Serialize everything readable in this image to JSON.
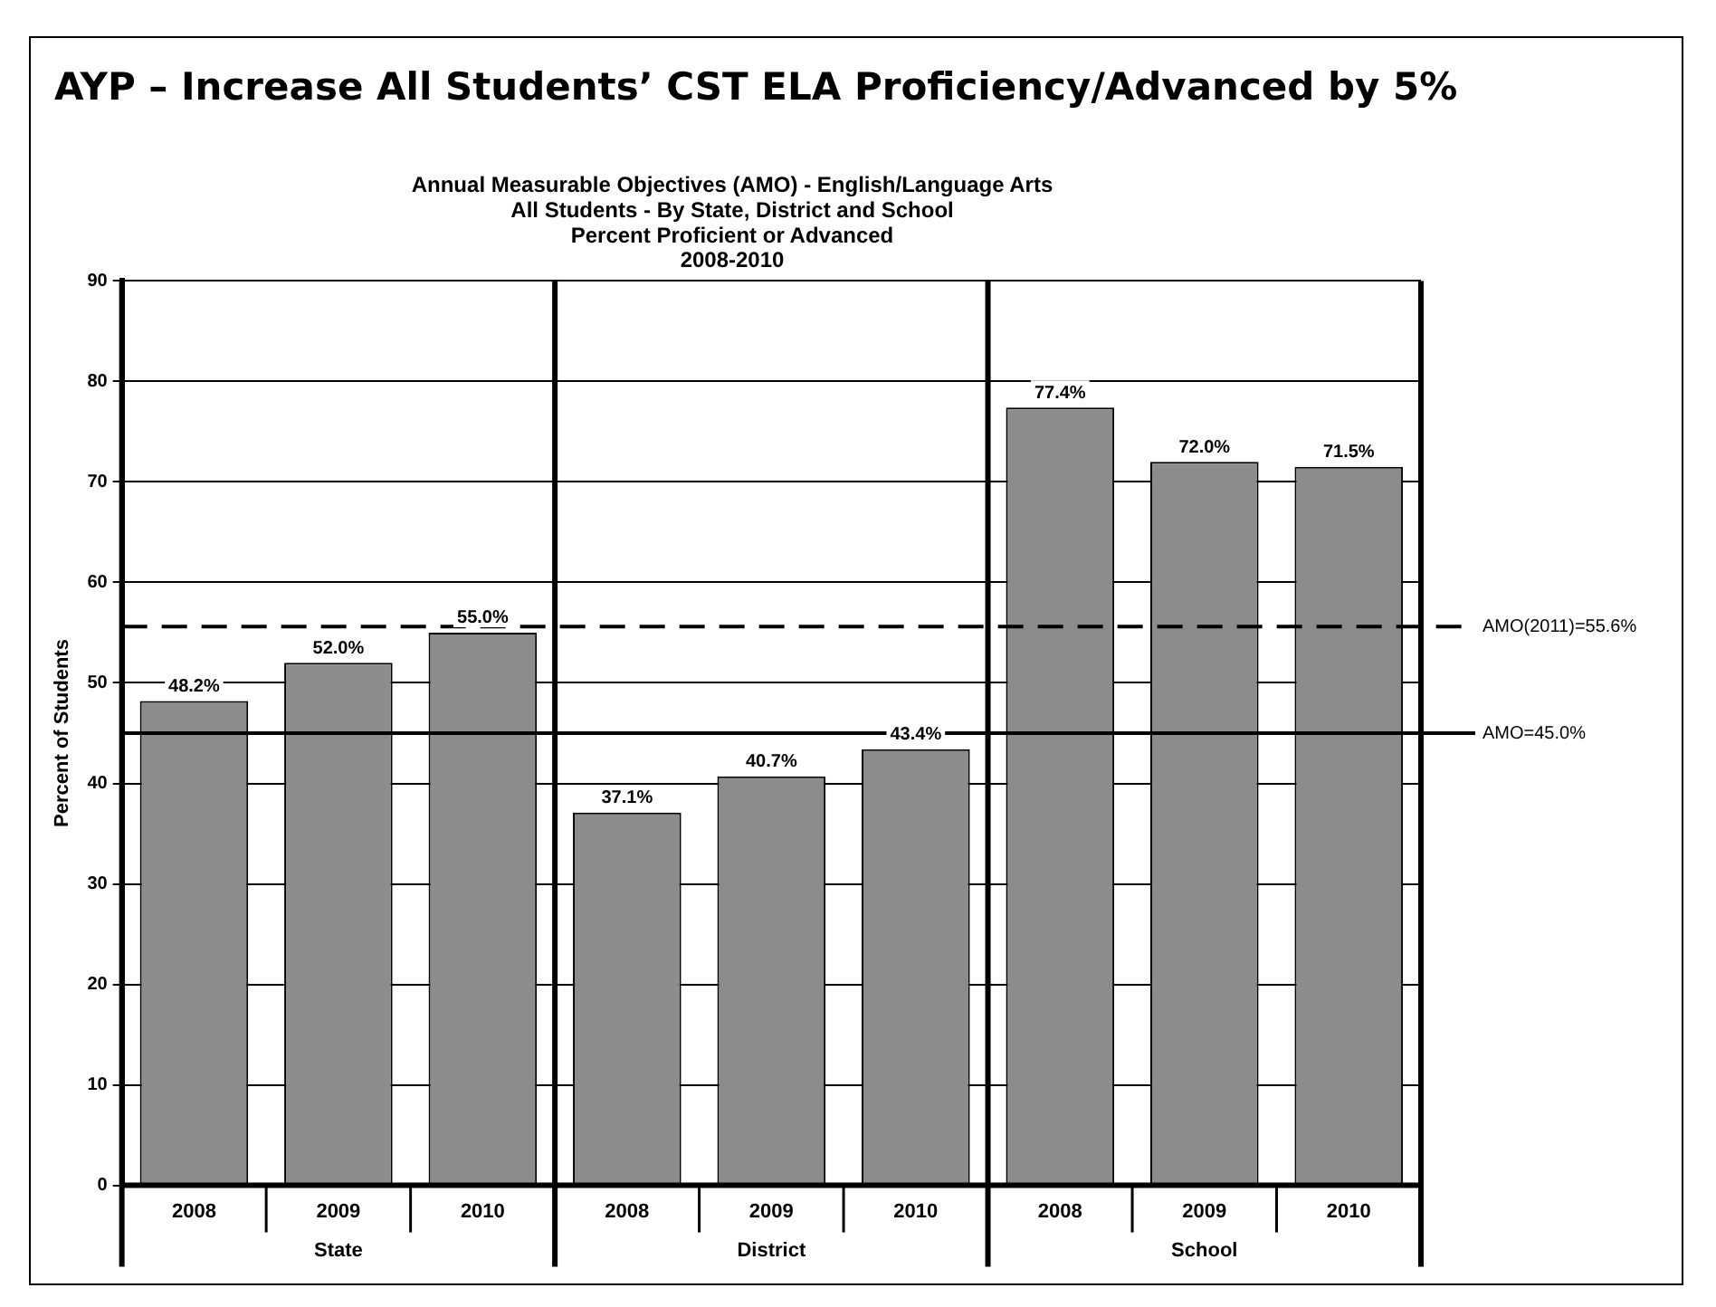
{
  "chart_data": {
    "type": "bar",
    "title": "AYP – Increase All Students’ CST ELA Proficiency/Advanced by 5%",
    "subtitle": "Annual Measurable Objectives (AMO) - English/Language Arts\nAll Students - By State, District and School\nPercent Proficient or Advanced\n2008-2010",
    "ylabel": "Percent of Students",
    "categories": [
      "2008",
      "2009",
      "2010",
      "2008",
      "2009",
      "2010",
      "2008",
      "2009",
      "2010"
    ],
    "values": [
      48.2,
      52.0,
      55.0,
      37.1,
      40.7,
      43.4,
      77.4,
      72.0,
      71.5
    ],
    "value_labels": [
      "48.2%",
      "52.0%",
      "55.0%",
      "37.1%",
      "40.7%",
      "43.4%",
      "77.4%",
      "72.0%",
      "71.5%"
    ],
    "color": "#8c8c8c",
    "ylim": [
      0,
      90
    ],
    "yticks": [
      0,
      10,
      20,
      30,
      40,
      50,
      60,
      70,
      80,
      90
    ],
    "grid": "y",
    "ref_lines": [
      {
        "axis": "y",
        "value": 55.6,
        "label": "AMO(2011)=55.6%",
        "color": "#000000",
        "line_style": "dashed"
      },
      {
        "axis": "y",
        "value": 45.0,
        "label": "AMO=45.0%",
        "color": "#000000",
        "line_style": "solid"
      }
    ],
    "annotations": [
      "State",
      "District",
      "School"
    ]
  }
}
